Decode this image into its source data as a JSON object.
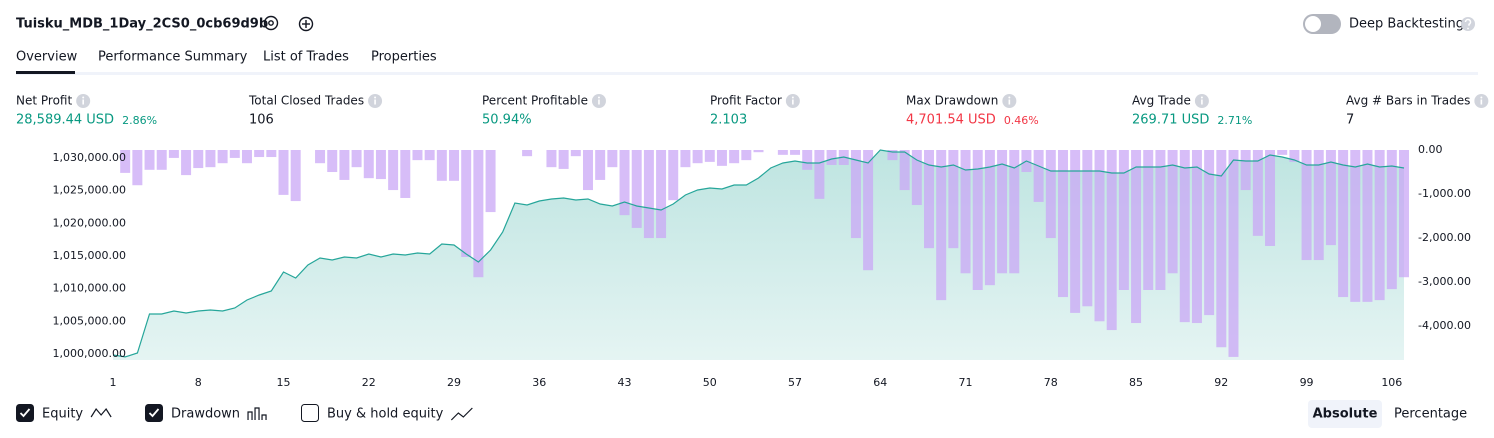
{
  "header": {
    "title": "Tuisku_MDB_1Day_2CS0_0cb69d9b",
    "deep_backtesting": "Deep Backtesting"
  },
  "tabs": [
    "Overview",
    "Performance Summary",
    "List of Trades",
    "Properties"
  ],
  "metrics": [
    {
      "label": "Net Profit",
      "value": "28,589.44 USD",
      "percent": "2.86%",
      "color": "#089981"
    },
    {
      "label": "Total Closed Trades",
      "value": "106",
      "color": "#131722"
    },
    {
      "label": "Percent Profitable",
      "value": "50.94%",
      "color": "#089981"
    },
    {
      "label": "Profit Factor",
      "value": "2.103",
      "color": "#089981"
    },
    {
      "label": "Max Drawdown",
      "value": "4,701.54 USD",
      "percent": "0.46%",
      "color": "#f23645"
    },
    {
      "label": "Avg Trade",
      "value": "269.71 USD",
      "percent": "2.71%",
      "color": "#089981"
    },
    {
      "label": "Avg # Bars in Trades",
      "value": "7",
      "color": "#131722"
    }
  ],
  "chart": {
    "type": "combo",
    "x": [
      1,
      2,
      3,
      4,
      5,
      6,
      7,
      8,
      9,
      10,
      11,
      12,
      13,
      14,
      15,
      16,
      17,
      18,
      19,
      20,
      21,
      22,
      23,
      24,
      25,
      26,
      27,
      28,
      29,
      30,
      31,
      32,
      33,
      34,
      35,
      36,
      37,
      38,
      39,
      40,
      41,
      42,
      43,
      44,
      45,
      46,
      47,
      48,
      49,
      50,
      51,
      52,
      53,
      54,
      55,
      56,
      57,
      58,
      59,
      60,
      61,
      62,
      63,
      64,
      65,
      66,
      67,
      68,
      69,
      70,
      71,
      72,
      73,
      74,
      75,
      76,
      77,
      78,
      79,
      80,
      81,
      82,
      83,
      84,
      85,
      86,
      87,
      88,
      89,
      90,
      91,
      92,
      93,
      94,
      95,
      96,
      97,
      98,
      99,
      100,
      101,
      102,
      103,
      104,
      105,
      106,
      107
    ],
    "xlim": [
      1,
      107
    ],
    "xticks": [
      1,
      8,
      15,
      22,
      29,
      36,
      43,
      50,
      57,
      64,
      71,
      78,
      85,
      92,
      99,
      106
    ],
    "ylim": [
      999080,
      1031210
    ],
    "yticks": [
      {
        "value": 1000000,
        "label": "1,000,000.00"
      },
      {
        "value": 1005000,
        "label": "1,005,000.00"
      },
      {
        "value": 1010000,
        "label": "1,010,000.00"
      },
      {
        "value": 1015000,
        "label": "1,015,000.00"
      },
      {
        "value": 1020000,
        "label": "1,020,000.00"
      },
      {
        "value": 1025000,
        "label": "1,025,000.00"
      },
      {
        "value": 1030000,
        "label": "1,030,000.00"
      }
    ],
    "y2lim": [
      -4770,
      0
    ],
    "y2ticks": [
      {
        "value": 0,
        "label": "0.00"
      },
      {
        "value": -1000,
        "label": "-1,000.00"
      },
      {
        "value": -2000,
        "label": "-2,000.00"
      },
      {
        "value": -3000,
        "label": "-3,000.00"
      },
      {
        "value": -4000,
        "label": "-4,000.00"
      }
    ],
    "series": [
      {
        "kind": "line",
        "axis": "y",
        "color": "#26a69a",
        "values": [
          999850,
          999550,
          1000150,
          1006120,
          1006120,
          1006580,
          1006270,
          1006580,
          1006730,
          1006580,
          1007040,
          1008260,
          1009030,
          1009640,
          1012550,
          1011630,
          1013620,
          1014690,
          1014380,
          1014840,
          1014690,
          1015300,
          1014840,
          1015300,
          1015150,
          1015450,
          1015300,
          1016830,
          1016680,
          1015300,
          1014080,
          1015910,
          1018670,
          1023100,
          1022800,
          1023410,
          1023720,
          1023870,
          1023560,
          1023720,
          1022950,
          1022640,
          1023260,
          1022640,
          1022340,
          1022030,
          1022950,
          1024330,
          1025090,
          1025400,
          1025250,
          1025860,
          1025860,
          1026930,
          1028460,
          1029220,
          1029530,
          1029220,
          1029220,
          1029840,
          1030140,
          1029680,
          1029220,
          1031210,
          1030910,
          1030910,
          1029680,
          1028920,
          1028610,
          1028920,
          1028150,
          1028310,
          1028610,
          1029070,
          1028460,
          1029530,
          1028760,
          1028000,
          1028000,
          1028000,
          1028000,
          1028000,
          1027690,
          1027690,
          1028610,
          1028610,
          1028610,
          1028920,
          1028460,
          1028610,
          1027540,
          1027230,
          1029680,
          1029530,
          1029530,
          1030450,
          1030140,
          1029680,
          1028920,
          1028920,
          1029380,
          1028920,
          1028610,
          1029070,
          1028610,
          1028760,
          1028460
        ]
      },
      {
        "kind": "bar",
        "axis": "y2",
        "color": "#c9a7f5",
        "values": [
          0,
          -520,
          -800,
          -450,
          -450,
          -180,
          -570,
          -410,
          -390,
          -300,
          -180,
          -300,
          -160,
          -160,
          -1020,
          -1160,
          0,
          -300,
          -500,
          -680,
          -390,
          -640,
          -660,
          -910,
          -1090,
          -230,
          -230,
          -700,
          -700,
          -2430,
          -2890,
          -1410,
          0,
          0,
          -140,
          0,
          -390,
          -430,
          -140,
          -910,
          -680,
          -390,
          -1480,
          -1770,
          -2000,
          -2000,
          -1140,
          -390,
          -300,
          -270,
          -360,
          -300,
          -230,
          -50,
          0,
          -110,
          -110,
          -450,
          -1110,
          -340,
          -340,
          -2000,
          -2730,
          0,
          -230,
          -910,
          -1250,
          -2230,
          -3410,
          -2230,
          -2800,
          -3180,
          -3070,
          -2800,
          -2800,
          -500,
          -1180,
          -2000,
          -3340,
          -3700,
          -3550,
          -3890,
          -4090,
          -3180,
          -3930,
          -3180,
          -3180,
          -2800,
          -3910,
          -3930,
          -3750,
          -4480,
          -4700,
          -910,
          -1950,
          -2180,
          -110,
          -270,
          -2500,
          -2500,
          -2160,
          -3340,
          -3450,
          -3450,
          -3410,
          -3160,
          -2890
        ]
      }
    ]
  },
  "footer": {
    "toggles": [
      {
        "label": "Equity",
        "checked": true
      },
      {
        "label": "Drawdown",
        "checked": true
      },
      {
        "label": "Buy & hold equity",
        "checked": false
      }
    ],
    "modes": [
      "Absolute",
      "Percentage"
    ]
  }
}
